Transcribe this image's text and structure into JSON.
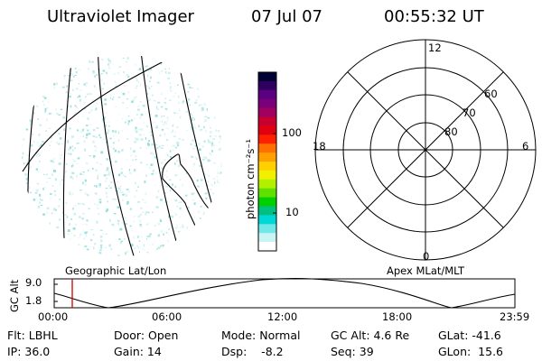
{
  "header": {
    "instrument": "Ultraviolet Imager",
    "date": "07 Jul 07",
    "time": "00:55:32 UT"
  },
  "colorbar": {
    "units": "photon cm⁻²s⁻¹",
    "tick_labels": [
      "100",
      "10"
    ],
    "colors": [
      "#000033",
      "#300060",
      "#5a0080",
      "#7a007a",
      "#a00060",
      "#c80030",
      "#e00010",
      "#ff2000",
      "#ff7000",
      "#ffa000",
      "#ffd000",
      "#f0f000",
      "#b0f000",
      "#60e000",
      "#00d000",
      "#00c080",
      "#00d8d8",
      "#70e8e8",
      "#c8f4f4",
      "#ffffff"
    ]
  },
  "polar_plot": {
    "mlt_labels": [
      "12",
      "18",
      "6",
      "0"
    ],
    "latitude_labels": [
      "60",
      "70",
      "80"
    ]
  },
  "map_labels": {
    "left": "Geographic Lat/Lon",
    "right": "Apex MLat/MLT"
  },
  "altitude_plot": {
    "y_title": "GC Alt",
    "y_ticks": [
      "9.0",
      "1.8"
    ],
    "x_ticks": [
      "00:00",
      "06:00",
      "12:00",
      "18:00",
      "23:59"
    ],
    "marker_color": "#cc0000"
  },
  "status": {
    "flt": "Flt: LBHL",
    "ip": "IP: 36.0",
    "door": "Door: Open",
    "gain": "Gain: 14",
    "mode": "Mode: Normal",
    "dsp": "Dsp:    -8.2",
    "gc_alt": "GC Alt: 4.6 Re",
    "seq": "Seq: 39",
    "glat": "GLat: -41.6",
    "glon": "GLon:  15.6"
  }
}
